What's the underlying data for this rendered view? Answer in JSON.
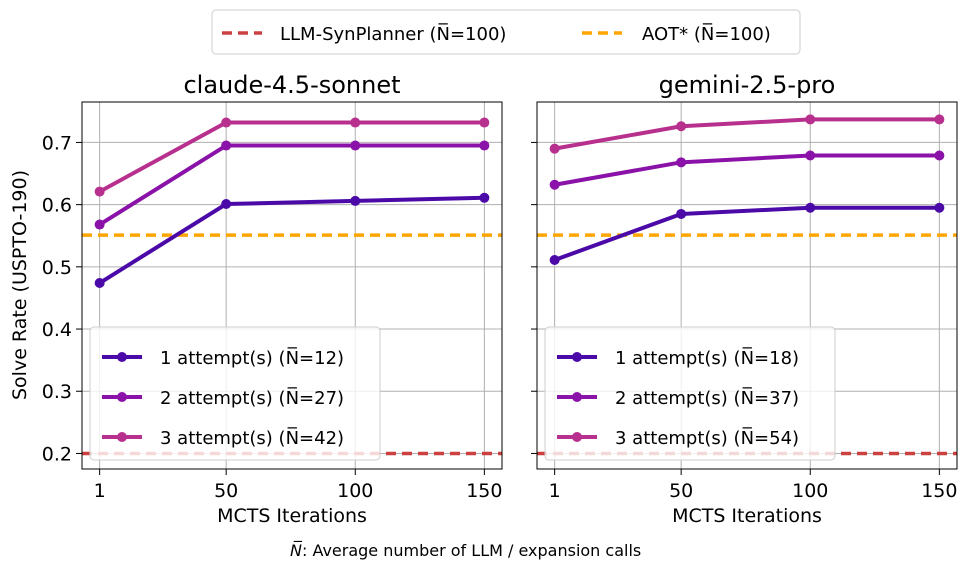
{
  "figure": {
    "footnote_prefix": "N̅",
    "footnote_text": ": Average number of LLM / expansion calls"
  },
  "top_legend": [
    {
      "label": "LLM-SynPlanner (N̅=100)",
      "color": "#cc4040",
      "value": 0.2
    },
    {
      "label": "AOT* (N̅=100)",
      "color": "#ffa500",
      "value": 0.551
    }
  ],
  "y_axis_label": "Solve Rate (USPTO-190)",
  "chart_data": [
    {
      "type": "line",
      "title": "claude-4.5-sonnet",
      "xlabel": "MCTS Iterations",
      "ylabel": "Solve Rate (USPTO-190)",
      "x": [
        1,
        50,
        100,
        150
      ],
      "xticks": [
        "1",
        "50",
        "100",
        "150"
      ],
      "ylim": [
        0.175,
        0.765
      ],
      "yticks": [
        "0.2",
        "0.3",
        "0.4",
        "0.5",
        "0.6",
        "0.7"
      ],
      "grid": true,
      "legend_position": "lower-left",
      "series": [
        {
          "name": "1 attempt(s) (N̅=12)",
          "color": "#4b0aa8",
          "values": [
            0.474,
            0.601,
            0.606,
            0.611
          ]
        },
        {
          "name": "2 attempt(s) (N̅=27)",
          "color": "#8b12a8",
          "values": [
            0.568,
            0.695,
            0.695,
            0.695
          ]
        },
        {
          "name": "3 attempt(s) (N̅=42)",
          "color": "#b8308e",
          "values": [
            0.621,
            0.732,
            0.732,
            0.732
          ]
        }
      ],
      "baselines": [
        {
          "name": "LLM-SynPlanner (N̅=100)",
          "value": 0.2,
          "color": "#cc4040"
        },
        {
          "name": "AOT* (N̅=100)",
          "value": 0.551,
          "color": "#ffa500"
        }
      ]
    },
    {
      "type": "line",
      "title": "gemini-2.5-pro",
      "xlabel": "MCTS Iterations",
      "ylabel": "",
      "x": [
        1,
        50,
        100,
        150
      ],
      "xticks": [
        "1",
        "50",
        "100",
        "150"
      ],
      "ylim": [
        0.175,
        0.765
      ],
      "yticks": [
        "0.2",
        "0.3",
        "0.4",
        "0.5",
        "0.6",
        "0.7"
      ],
      "grid": true,
      "legend_position": "lower-left",
      "series": [
        {
          "name": "1 attempt(s) (N̅=18)",
          "color": "#4b0aa8",
          "values": [
            0.511,
            0.585,
            0.595,
            0.595
          ]
        },
        {
          "name": "2 attempt(s) (N̅=37)",
          "color": "#8b12a8",
          "values": [
            0.632,
            0.668,
            0.679,
            0.679
          ]
        },
        {
          "name": "3 attempt(s) (N̅=54)",
          "color": "#b8308e",
          "values": [
            0.69,
            0.726,
            0.737,
            0.737
          ]
        }
      ],
      "baselines": [
        {
          "name": "LLM-SynPlanner (N̅=100)",
          "value": 0.2,
          "color": "#cc4040"
        },
        {
          "name": "AOT* (N̅=100)",
          "value": 0.551,
          "color": "#ffa500"
        }
      ]
    }
  ]
}
